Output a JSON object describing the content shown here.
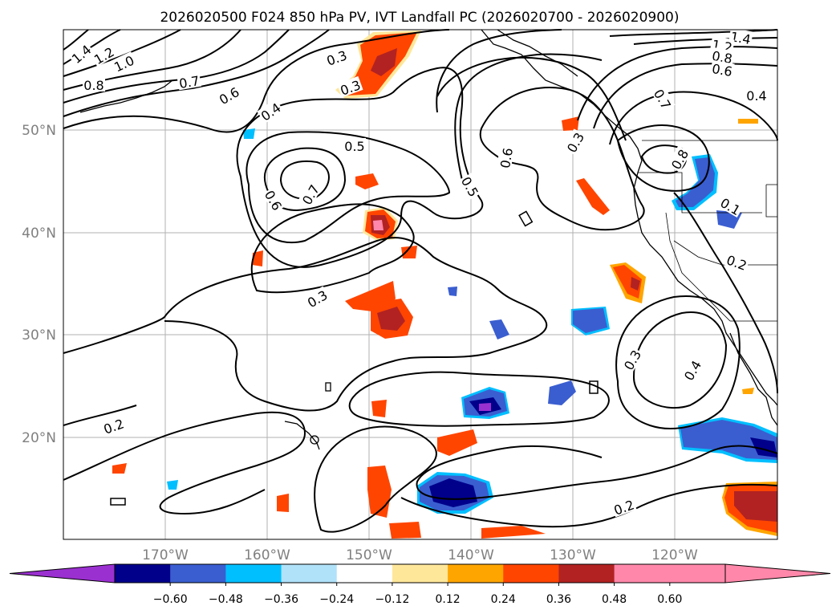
{
  "title": "2026020500 F024 850 hPa PV, IVT Landfall PC (2026020700 - 2026020900)",
  "longitude_labels": [
    "170°W",
    "160°W",
    "150°W",
    "140°W",
    "130°W",
    "120°W"
  ],
  "latitude_labels": [
    "50°N",
    "40°N",
    "30°N",
    "20°N"
  ],
  "contour_labels": [
    "1.4",
    "1.2",
    "1.0",
    "0.8",
    "0.7",
    "0.6",
    "0.4",
    "0.5",
    "0.3",
    "0.6",
    "0.7",
    "0.3",
    "0.5",
    "0.6",
    "0.3",
    "0.7",
    "0.8",
    "1.4",
    "1.2",
    "0.8",
    "0.6",
    "0.4",
    "0.1",
    "0.2",
    "0.3",
    "0.4",
    "0.2",
    "0.2",
    "0.3"
  ],
  "colorbar": {
    "ticks": [
      "−0.60",
      "−0.48",
      "−0.36",
      "−0.24",
      "−0.12",
      "0.12",
      "0.24",
      "0.36",
      "0.48",
      "0.60"
    ],
    "colors": [
      "#9b30d0",
      "#00008b",
      "#3a5ed0",
      "#00bfff",
      "#b0e2fa",
      "#ffffff",
      "#ffe79a",
      "#ffa500",
      "#ff4500",
      "#b22222",
      "#ff88aa",
      "#ff88aa"
    ]
  },
  "pc_levels": [
    -0.6,
    -0.48,
    -0.36,
    -0.24,
    -0.12,
    0.12,
    0.24,
    0.36,
    0.48,
    0.6
  ]
}
